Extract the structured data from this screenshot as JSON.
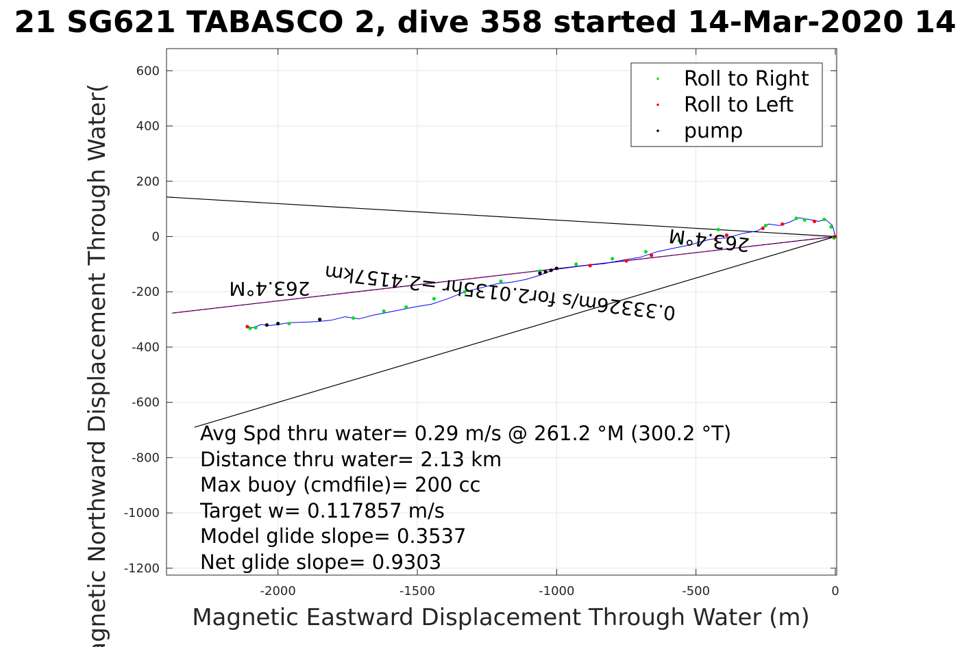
{
  "colors": {
    "track": "#0000ff",
    "roll_right": "#00dd22",
    "roll_left": "#ff0000",
    "pump": "#000000",
    "course_line": "#b000b0",
    "grid": "#e6e6e6",
    "axes": "#262626"
  },
  "chart_data": {
    "type": "scatter",
    "title": "21 SG621 TABASCO 2, dive 358 started 14-Mar-2020 14",
    "xlabel": "Magnetic Eastward Displacement Through Water (m)",
    "ylabel": "Magnetic Northward Displacement Through Water(",
    "xlim": [
      -2400,
      5
    ],
    "ylim": [
      -1225,
      680
    ],
    "x_ticks": [
      -2000,
      -1500,
      -1000,
      -500,
      0
    ],
    "x_tick_labels": [
      "-2000",
      "-1500",
      "-1000",
      "-500",
      "0"
    ],
    "y_ticks": [
      600,
      400,
      200,
      0,
      -200,
      -400,
      -600,
      -800,
      -1000,
      -1200
    ],
    "y_tick_labels": [
      "600",
      "400",
      "200",
      "0",
      "-200",
      "-400",
      "-600",
      "-800",
      "-1000",
      "-1200"
    ],
    "grid": true,
    "legend_position": "top-right",
    "legend": [
      "Roll to Right",
      "Roll to Left",
      "pump"
    ],
    "track": {
      "x": [
        0,
        -10,
        -35,
        -60,
        -95,
        -130,
        -165,
        -200,
        -240,
        -280,
        -330,
        -390,
        -450,
        -520,
        -580,
        -640,
        -700,
        -760,
        -830,
        -900,
        -960,
        -1010,
        -1060,
        -1110,
        -1160,
        -1210,
        -1270,
        -1330,
        -1390,
        -1450,
        -1510,
        -1560,
        -1610,
        -1660,
        -1710,
        -1760,
        -1810,
        -1860,
        -1910,
        -1960,
        -2000,
        -2030,
        -2060,
        -2090,
        -2110
      ],
      "y": [
        0,
        40,
        62,
        55,
        62,
        68,
        52,
        40,
        45,
        20,
        12,
        -5,
        -10,
        -30,
        -42,
        -55,
        -75,
        -85,
        -98,
        -105,
        -113,
        -120,
        -140,
        -155,
        -165,
        -170,
        -185,
        -200,
        -225,
        -245,
        -255,
        -265,
        -275,
        -285,
        -298,
        -290,
        -303,
        -308,
        -310,
        -312,
        -318,
        -322,
        -318,
        -330,
        -326
      ]
    },
    "series": [
      {
        "name": "Roll to Right",
        "x": [
          -5,
          -15,
          -40,
          -110,
          -140,
          -250,
          -420,
          -560,
          -680,
          -800,
          -930,
          -1060,
          -1200,
          -1330,
          -1440,
          -1540,
          -1620,
          -1730,
          -1960,
          -2100,
          -2080
        ],
        "y": [
          -5,
          35,
          62,
          60,
          66,
          40,
          25,
          -15,
          -55,
          -80,
          -100,
          -125,
          -162,
          -200,
          -225,
          -255,
          -270,
          -295,
          -315,
          -332,
          -330
        ]
      },
      {
        "name": "Roll to Left",
        "x": [
          -2,
          -75,
          -190,
          -260,
          -390,
          -430,
          -660,
          -750,
          -880,
          -2110
        ],
        "y": [
          0,
          55,
          45,
          30,
          5,
          -10,
          -68,
          -88,
          -105,
          -326
        ]
      },
      {
        "name": "pump",
        "x": [
          -1000,
          -1020,
          -1040,
          -1060,
          -1850,
          -2000,
          -2040
        ],
        "y": [
          -115,
          -122,
          -128,
          -133,
          -300,
          -315,
          -320
        ]
      }
    ],
    "course_line": {
      "x": [
        0,
        -2380
      ],
      "y": [
        0,
        -277
      ]
    },
    "cone_lines": [
      {
        "x": [
          0,
          -2400
        ],
        "y": [
          0,
          143
        ]
      },
      {
        "x": [
          0,
          -2300
        ],
        "y": [
          0,
          -690
        ]
      }
    ],
    "rotated_labels": [
      {
        "text": "263.4°M",
        "x": -2030,
        "y": -165,
        "angle": 180
      },
      {
        "text": "263.4°M",
        "x": -450,
        "y": 10,
        "angle": 186.7
      },
      {
        "text": "0.33326m/s for2.0135hr =2.4157km",
        "x": -1200,
        "y": -180,
        "angle": 186.7
      }
    ],
    "annotations": [
      "Avg Spd thru water=  0.29 m/s @ 261.2 °M (300.2 °T)",
      "Distance thru water=  2.13 km",
      "Max buoy (cmdfile)= 200 cc",
      "Target w= 0.117857 m/s",
      "Model glide slope= 0.3537",
      "Net glide slope= 0.9303"
    ]
  }
}
